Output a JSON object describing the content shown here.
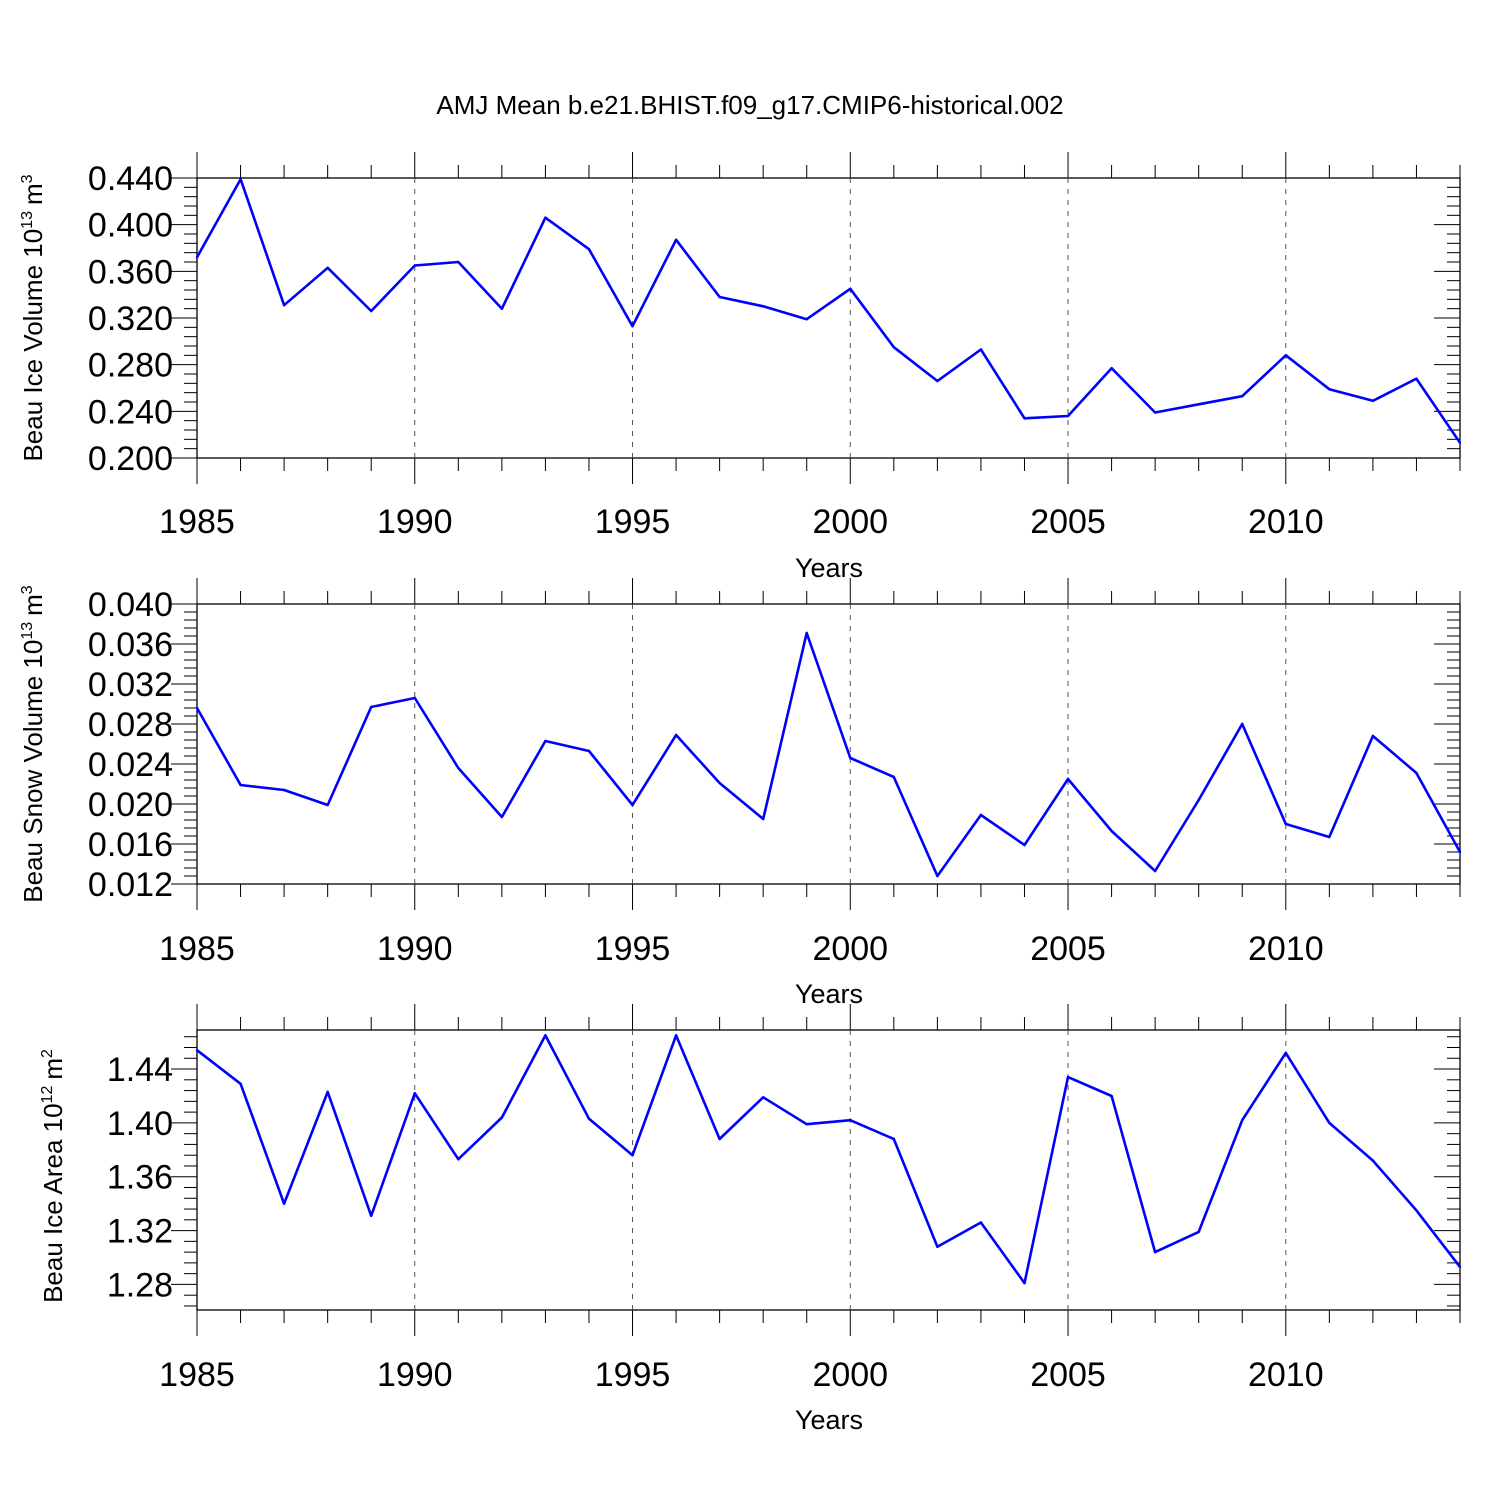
{
  "title": "AMJ Mean b.e21.BHIST.f09_g17.CMIP6-historical.002",
  "line_color": "#0000ff",
  "chart_data": [
    {
      "type": "line",
      "ylabel": "Beau Ice Volume 10",
      "ylabel_exp": "13",
      "ylabel_unit": "m",
      "ylabel_unit_exp": "3",
      "xlabel": "Years",
      "xlim": [
        1985,
        2014
      ],
      "ylim": [
        0.2,
        0.44
      ],
      "yticks": [
        "0.440",
        "0.400",
        "0.360",
        "0.320",
        "0.280",
        "0.240",
        "0.200"
      ],
      "ytick_values": [
        0.44,
        0.4,
        0.36,
        0.32,
        0.28,
        0.24,
        0.2
      ],
      "xticks": [
        "1985",
        "1990",
        "1995",
        "2000",
        "2005",
        "2010"
      ],
      "xtick_values": [
        1985,
        1990,
        1995,
        2000,
        2005,
        2010
      ],
      "grid": "dashed vertical at major x ticks",
      "x": [
        1985,
        1986,
        1987,
        1988,
        1989,
        1990,
        1991,
        1992,
        1993,
        1994,
        1995,
        1996,
        1997,
        1998,
        1999,
        2000,
        2001,
        2002,
        2003,
        2004,
        2005,
        2006,
        2007,
        2008,
        2009,
        2010,
        2011,
        2012,
        2013,
        2014
      ],
      "y": [
        0.372,
        0.439,
        0.331,
        0.363,
        0.326,
        0.365,
        0.368,
        0.328,
        0.406,
        0.379,
        0.313,
        0.387,
        0.338,
        0.33,
        0.319,
        0.345,
        0.295,
        0.266,
        0.293,
        0.234,
        0.236,
        0.277,
        0.239,
        0.246,
        0.253,
        0.288,
        0.259,
        0.249,
        0.268,
        0.213
      ]
    },
    {
      "type": "line",
      "ylabel": "Beau Snow Volume 10",
      "ylabel_exp": "13",
      "ylabel_unit": "m",
      "ylabel_unit_exp": "3",
      "xlabel": "Years",
      "xlim": [
        1985,
        2014
      ],
      "ylim": [
        0.012,
        0.04
      ],
      "yticks": [
        "0.040",
        "0.036",
        "0.032",
        "0.028",
        "0.024",
        "0.020",
        "0.016",
        "0.012"
      ],
      "ytick_values": [
        0.04,
        0.036,
        0.032,
        0.028,
        0.024,
        0.02,
        0.016,
        0.012
      ],
      "xticks": [
        "1985",
        "1990",
        "1995",
        "2000",
        "2005",
        "2010"
      ],
      "xtick_values": [
        1985,
        1990,
        1995,
        2000,
        2005,
        2010
      ],
      "grid": "dashed vertical at major x ticks",
      "x": [
        1985,
        1986,
        1987,
        1988,
        1989,
        1990,
        1991,
        1992,
        1993,
        1994,
        1995,
        1996,
        1997,
        1998,
        1999,
        2000,
        2001,
        2002,
        2003,
        2004,
        2005,
        2006,
        2007,
        2008,
        2009,
        2010,
        2011,
        2012,
        2013,
        2014
      ],
      "y": [
        0.0296,
        0.0219,
        0.0214,
        0.0199,
        0.0297,
        0.0306,
        0.0236,
        0.0187,
        0.0263,
        0.0253,
        0.0199,
        0.0269,
        0.0221,
        0.0185,
        0.0371,
        0.0246,
        0.0227,
        0.0128,
        0.0189,
        0.0159,
        0.0225,
        0.0173,
        0.0133,
        0.0204,
        0.028,
        0.018,
        0.0167,
        0.0268,
        0.0231,
        0.0152
      ]
    },
    {
      "type": "line",
      "ylabel": "Beau Ice Area 10",
      "ylabel_exp": "12",
      "ylabel_unit": "m",
      "ylabel_unit_exp": "2",
      "xlabel": "Years",
      "xlim": [
        1985,
        2014
      ],
      "ylim": [
        1.261,
        1.469
      ],
      "yticks": [
        "1.44",
        "1.40",
        "1.36",
        "1.32",
        "1.28"
      ],
      "ytick_values": [
        1.44,
        1.4,
        1.36,
        1.32,
        1.28
      ],
      "xticks": [
        "1985",
        "1990",
        "1995",
        "2000",
        "2005",
        "2010"
      ],
      "xtick_values": [
        1985,
        1990,
        1995,
        2000,
        2005,
        2010
      ],
      "grid": "dashed vertical at major x ticks",
      "x": [
        1985,
        1986,
        1987,
        1988,
        1989,
        1990,
        1991,
        1992,
        1993,
        1994,
        1995,
        1996,
        1997,
        1998,
        1999,
        2000,
        2001,
        2002,
        2003,
        2004,
        2005,
        2006,
        2007,
        2008,
        2009,
        2010,
        2011,
        2012,
        2013,
        2014
      ],
      "y": [
        1.454,
        1.429,
        1.34,
        1.423,
        1.331,
        1.422,
        1.373,
        1.404,
        1.465,
        1.403,
        1.376,
        1.465,
        1.388,
        1.419,
        1.399,
        1.402,
        1.388,
        1.308,
        1.326,
        1.281,
        1.434,
        1.42,
        1.304,
        1.319,
        1.402,
        1.452,
        1.4,
        1.372,
        1.335,
        1.293
      ]
    }
  ]
}
